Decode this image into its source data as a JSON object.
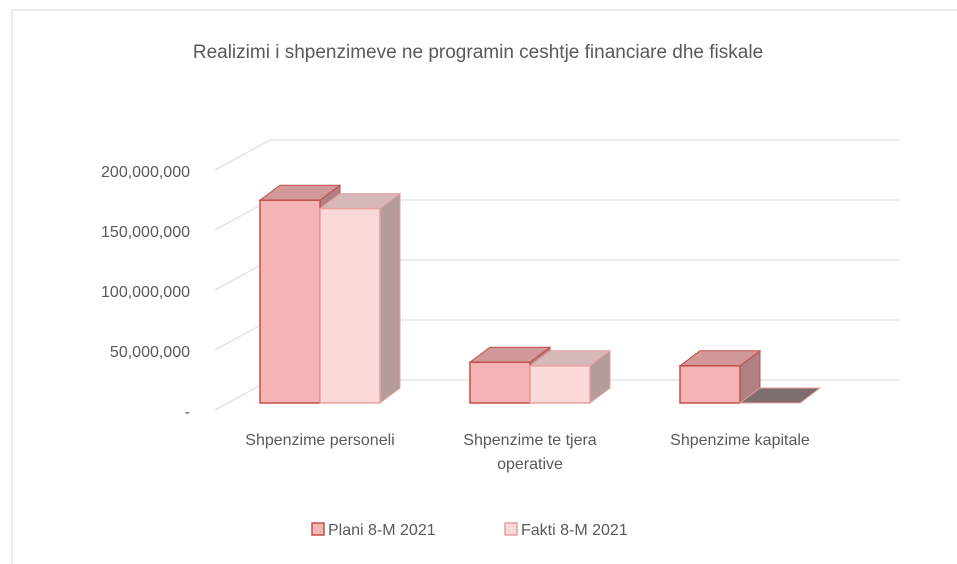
{
  "chart_data": {
    "type": "bar3d",
    "title": "Realizimi i shpenzimeve  ne programin ceshtje financiare dhe fiskale",
    "categories": [
      "Shpenzime personeli",
      "Shpenzime te tjera operative",
      "Shpenzime kapitale"
    ],
    "series": [
      {
        "name": "Plani 8-M 2021",
        "color": "#f6b3b3",
        "values": [
          169000000,
          34000000,
          31000000
        ]
      },
      {
        "name": "Fakti 8-M  2021",
        "color": "#fcd9d9",
        "values": [
          162000000,
          31000000,
          0
        ]
      }
    ],
    "ylim": [
      0,
      200000000
    ],
    "yticks": [
      {
        "value": 0,
        "label": "-"
      },
      {
        "value": 50000000,
        "label": "50,000,000"
      },
      {
        "value": 100000000,
        "label": "100,000,000"
      },
      {
        "value": 150000000,
        "label": "150,000,000"
      },
      {
        "value": 200000000,
        "label": "200,000,000"
      }
    ],
    "grid": true,
    "legend": "bottom"
  }
}
